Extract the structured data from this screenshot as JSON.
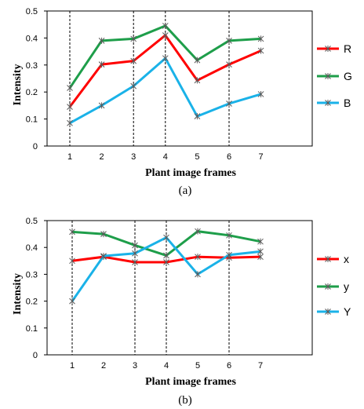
{
  "chart_data": [
    {
      "type": "line",
      "caption": "(a)",
      "xlabel": "Plant image frames",
      "ylabel": "Intensity",
      "categories": [
        "1",
        "2",
        "3",
        "4",
        "5",
        "6",
        "7"
      ],
      "yticks": [
        "0",
        "0.1",
        "0.2",
        "0.3",
        "0.4",
        "0.5"
      ],
      "ylim": [
        0,
        0.5
      ],
      "marker_frames": [
        1,
        3,
        4,
        6
      ],
      "legend_position": "right",
      "series": [
        {
          "name": "R",
          "color": "#ff0000",
          "values": [
            0.145,
            0.302,
            0.315,
            0.41,
            0.243,
            0.302,
            0.353
          ]
        },
        {
          "name": "G",
          "color": "#1e9e4a",
          "values": [
            0.215,
            0.39,
            0.397,
            0.445,
            0.318,
            0.39,
            0.397
          ]
        },
        {
          "name": "B",
          "color": "#1ab2e8",
          "values": [
            0.085,
            0.15,
            0.222,
            0.325,
            0.11,
            0.157,
            0.192
          ]
        }
      ]
    },
    {
      "type": "line",
      "caption": "(b)",
      "xlabel": "Plant image frames",
      "ylabel": "Intensity",
      "categories": [
        "1",
        "2",
        "3",
        "4",
        "5",
        "6",
        "7"
      ],
      "yticks": [
        "0",
        "0.1",
        "0.2",
        "0.3",
        "0.4",
        "0.5"
      ],
      "ylim": [
        0,
        0.5
      ],
      "marker_frames": [
        1,
        3,
        4,
        6
      ],
      "legend_position": "right",
      "series": [
        {
          "name": "x",
          "color": "#ff0000",
          "values": [
            0.35,
            0.365,
            0.345,
            0.345,
            0.365,
            0.362,
            0.365
          ]
        },
        {
          "name": "y",
          "color": "#1e9e4a",
          "values": [
            0.458,
            0.45,
            0.408,
            0.37,
            0.46,
            0.445,
            0.422
          ]
        },
        {
          "name": "Y",
          "color": "#1ab2e8",
          "values": [
            0.2,
            0.368,
            0.378,
            0.437,
            0.3,
            0.372,
            0.385
          ]
        }
      ]
    }
  ]
}
